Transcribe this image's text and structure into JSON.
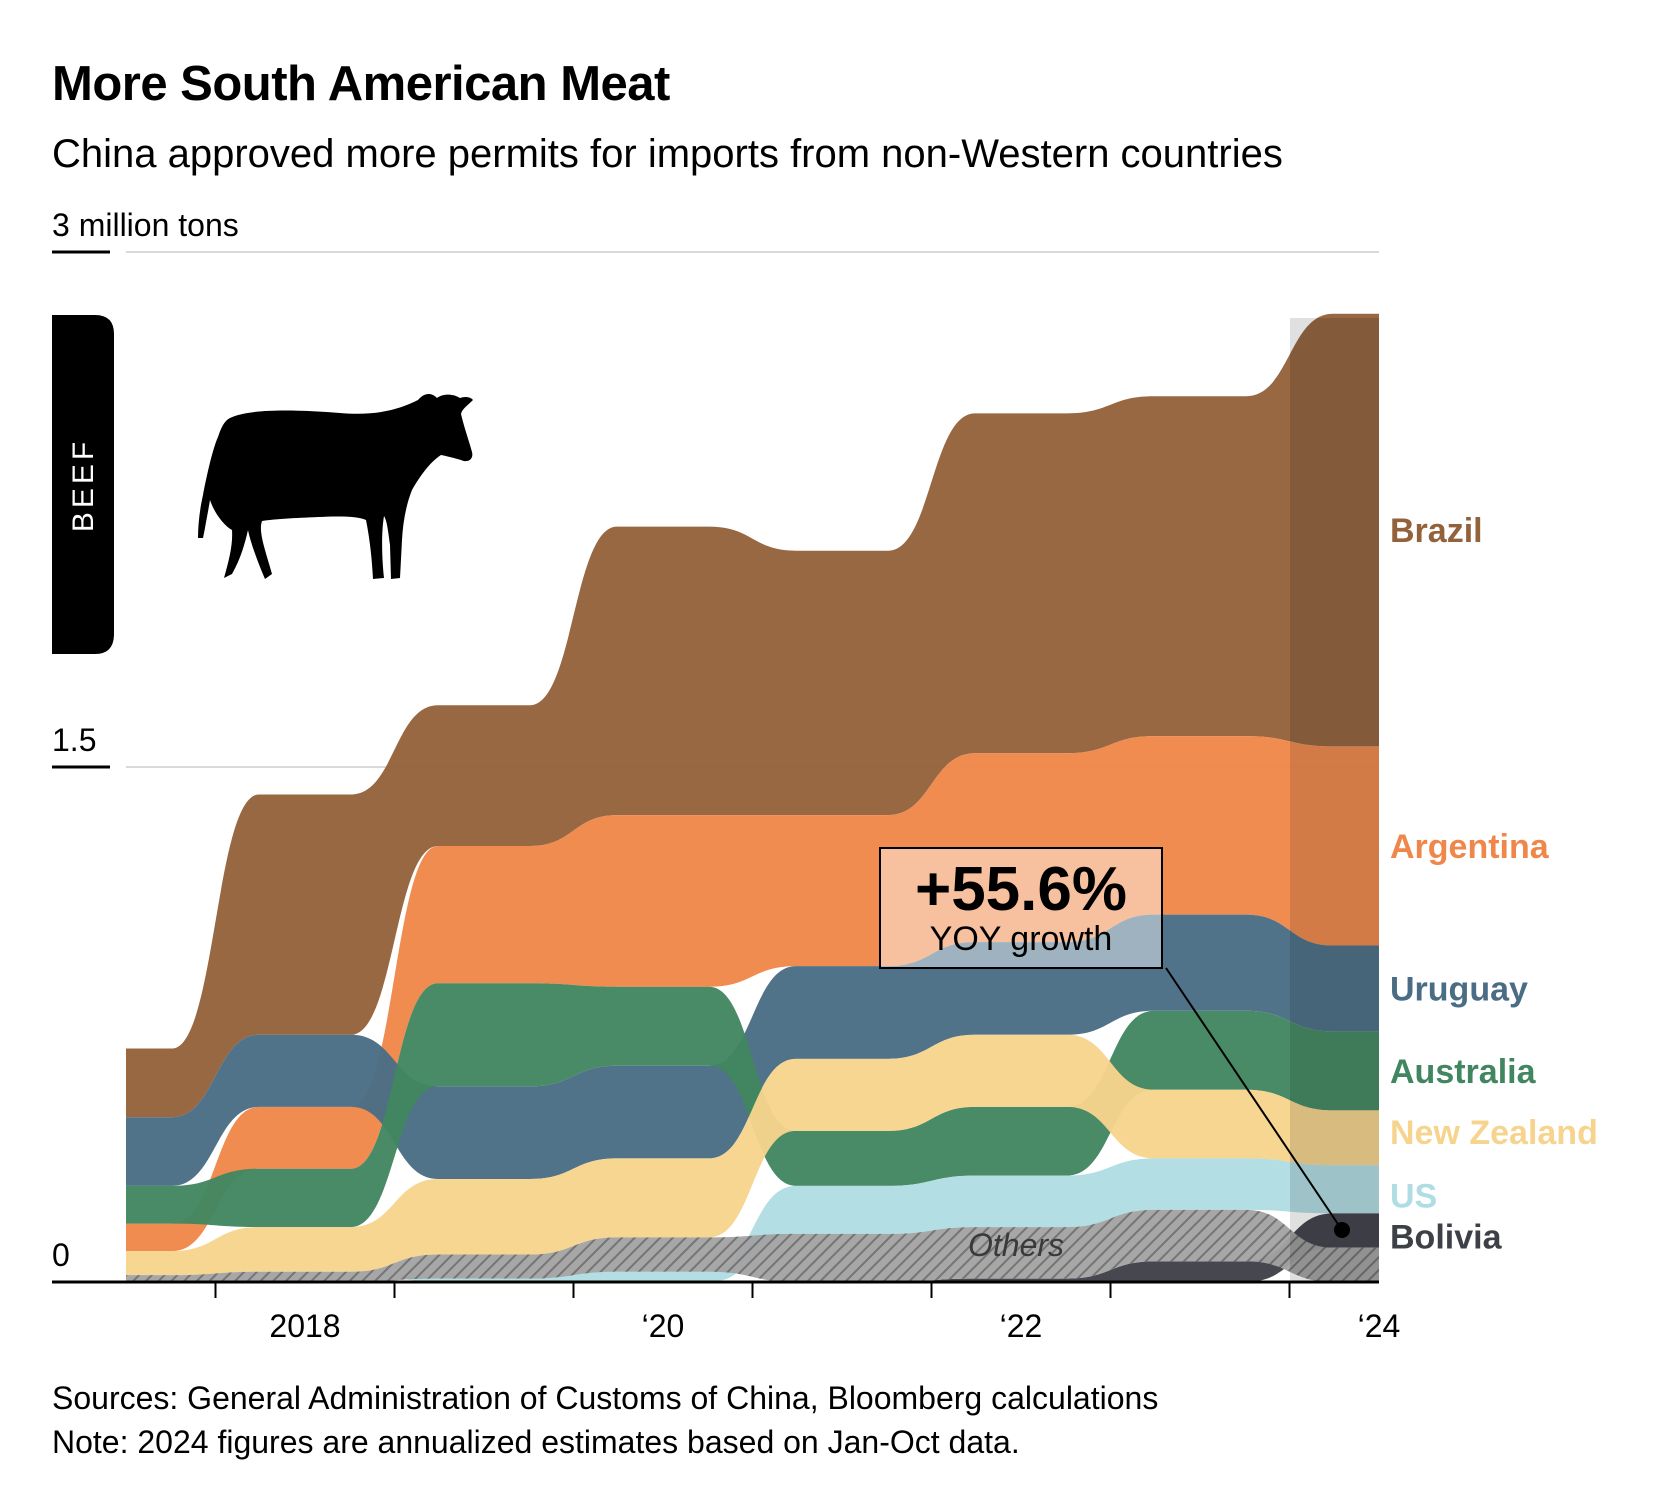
{
  "header": {
    "title": "More South American Meat",
    "subtitle": "China approved more permits for imports from non-Western countries"
  },
  "side_tab": {
    "label": "BEEF"
  },
  "icon": "cow-icon",
  "annotation": {
    "value": "+55.6%",
    "label": "YOY growth"
  },
  "others_label": "Others",
  "footer": {
    "sources": "Sources: General Administration of Customs of China, Bloomberg calculations",
    "note": "Note: 2024 figures are annualized estimates based on Jan-Oct data."
  },
  "chart_data": {
    "type": "area",
    "subtype": "ranked stream (bump area) chart, stacked by rank each year",
    "x": [
      2017,
      2018,
      2019,
      2020,
      2021,
      2022,
      2023,
      2024
    ],
    "x_tick_labels": [
      "2018",
      "‘20",
      "‘22",
      "‘24"
    ],
    "x_tick_values": [
      2018,
      2020,
      2022,
      2024
    ],
    "unit_label": "3 million tons",
    "y_tick_labels": [
      "3 million tons",
      "1.5",
      "0"
    ],
    "y_tick_values": [
      3,
      1.5,
      0
    ],
    "ylim": [
      0,
      3
    ],
    "grid": true,
    "legend": "direct labels at right end",
    "series": [
      {
        "name": "Brazil",
        "color": "#93623a",
        "label_color": "#93623a",
        "values": [
          0.2,
          0.7,
          0.41,
          0.84,
          0.77,
          0.99,
          0.99,
          1.26
        ]
      },
      {
        "name": "Argentina",
        "color": "#f0874a",
        "label_color": "#f0874a",
        "values": [
          0.08,
          0.18,
          0.4,
          0.5,
          0.44,
          0.55,
          0.52,
          0.58
        ]
      },
      {
        "name": "Uruguay",
        "color": "#4a6d85",
        "label_color": "#4a6d85",
        "values": [
          0.2,
          0.21,
          0.27,
          0.27,
          0.27,
          0.27,
          0.28,
          0.25
        ]
      },
      {
        "name": "Australia",
        "color": "#418660",
        "label_color": "#418660",
        "values": [
          0.11,
          0.17,
          0.3,
          0.23,
          0.16,
          0.2,
          0.23,
          0.23
        ]
      },
      {
        "name": "New Zealand",
        "color": "#f6d48d",
        "label_color": "#f6d48d",
        "values": [
          0.07,
          0.13,
          0.22,
          0.23,
          0.21,
          0.21,
          0.2,
          0.16
        ]
      },
      {
        "name": "US",
        "color": "#b0dde3",
        "label_color": "#b0dde3",
        "values": [
          0.0,
          0.0,
          0.01,
          0.03,
          0.14,
          0.15,
          0.15,
          0.14
        ]
      },
      {
        "name": "Bolivia",
        "color": "#3e4048",
        "label_color": "#3e4048",
        "values": [
          0.0,
          0.0,
          0.0,
          0.0,
          0.0,
          0.01,
          0.06,
          0.1
        ]
      },
      {
        "name": "Others",
        "color": "#9a9a9a",
        "label_color": "#444444",
        "values": [
          0.02,
          0.03,
          0.07,
          0.1,
          0.14,
          0.15,
          0.15,
          0.1
        ]
      }
    ],
    "rank_order_bottom_to_top": {
      "2017": [
        "Others",
        "US",
        "Bolivia",
        "New Zealand",
        "Argentina",
        "Australia",
        "Uruguay",
        "Brazil"
      ],
      "2018": [
        "Others",
        "US",
        "Bolivia",
        "New Zealand",
        "Australia",
        "Argentina",
        "Uruguay",
        "Brazil"
      ],
      "2019": [
        "US",
        "Bolivia",
        "Others",
        "New Zealand",
        "Uruguay",
        "Australia",
        "Argentina",
        "Brazil"
      ],
      "2020": [
        "Bolivia",
        "US",
        "Others",
        "New Zealand",
        "Uruguay",
        "Australia",
        "Argentina",
        "Brazil"
      ],
      "2021": [
        "Bolivia",
        "Others",
        "US",
        "Australia",
        "New Zealand",
        "Uruguay",
        "Argentina",
        "Brazil"
      ],
      "2022": [
        "Bolivia",
        "Others",
        "US",
        "Australia",
        "New Zealand",
        "Uruguay",
        "Argentina",
        "Brazil"
      ],
      "2023": [
        "Bolivia",
        "Others",
        "US",
        "New Zealand",
        "Australia",
        "Uruguay",
        "Argentina",
        "Brazil"
      ],
      "2024": [
        "Others",
        "Bolivia",
        "US",
        "New Zealand",
        "Australia",
        "Uruguay",
        "Argentina",
        "Brazil"
      ]
    }
  }
}
